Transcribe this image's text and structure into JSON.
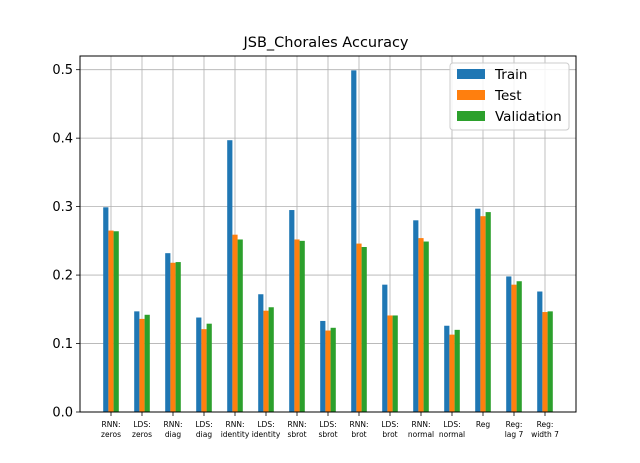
{
  "chart_data": {
    "type": "bar",
    "title": "JSB_Chorales Accuracy",
    "xlabel": "",
    "ylabel": "",
    "ylim": [
      0,
      0.52
    ],
    "yticks": [
      "0.0",
      "0.1",
      "0.2",
      "0.3",
      "0.4",
      "0.5"
    ],
    "grid": true,
    "legend_position": "top-right",
    "categories": [
      [
        "RNN:",
        "zeros"
      ],
      [
        "LDS:",
        "zeros"
      ],
      [
        "RNN:",
        "diag"
      ],
      [
        "LDS:",
        "diag"
      ],
      [
        "RNN:",
        "identity"
      ],
      [
        "LDS:",
        "identity"
      ],
      [
        "RNN:",
        "sbrot"
      ],
      [
        "LDS:",
        "sbrot"
      ],
      [
        "RNN:",
        "brot"
      ],
      [
        "LDS:",
        "brot"
      ],
      [
        "RNN:",
        "normal"
      ],
      [
        "LDS:",
        "normal"
      ],
      [
        "Reg"
      ],
      [
        "Reg:",
        "lag 7"
      ],
      [
        "Reg:",
        "width 7"
      ]
    ],
    "series": [
      {
        "name": "Train",
        "color": "#1f77b4",
        "values": [
          0.299,
          0.147,
          0.232,
          0.138,
          0.397,
          0.172,
          0.295,
          0.133,
          0.499,
          0.186,
          0.28,
          0.126,
          0.297,
          0.198,
          0.176
        ]
      },
      {
        "name": "Test",
        "color": "#ff7f0e",
        "values": [
          0.265,
          0.136,
          0.218,
          0.121,
          0.259,
          0.148,
          0.252,
          0.119,
          0.246,
          0.141,
          0.254,
          0.113,
          0.286,
          0.186,
          0.146
        ]
      },
      {
        "name": "Validation",
        "color": "#2ca02c",
        "values": [
          0.264,
          0.142,
          0.219,
          0.129,
          0.252,
          0.153,
          0.25,
          0.123,
          0.241,
          0.141,
          0.249,
          0.12,
          0.292,
          0.191,
          0.147
        ]
      }
    ]
  }
}
